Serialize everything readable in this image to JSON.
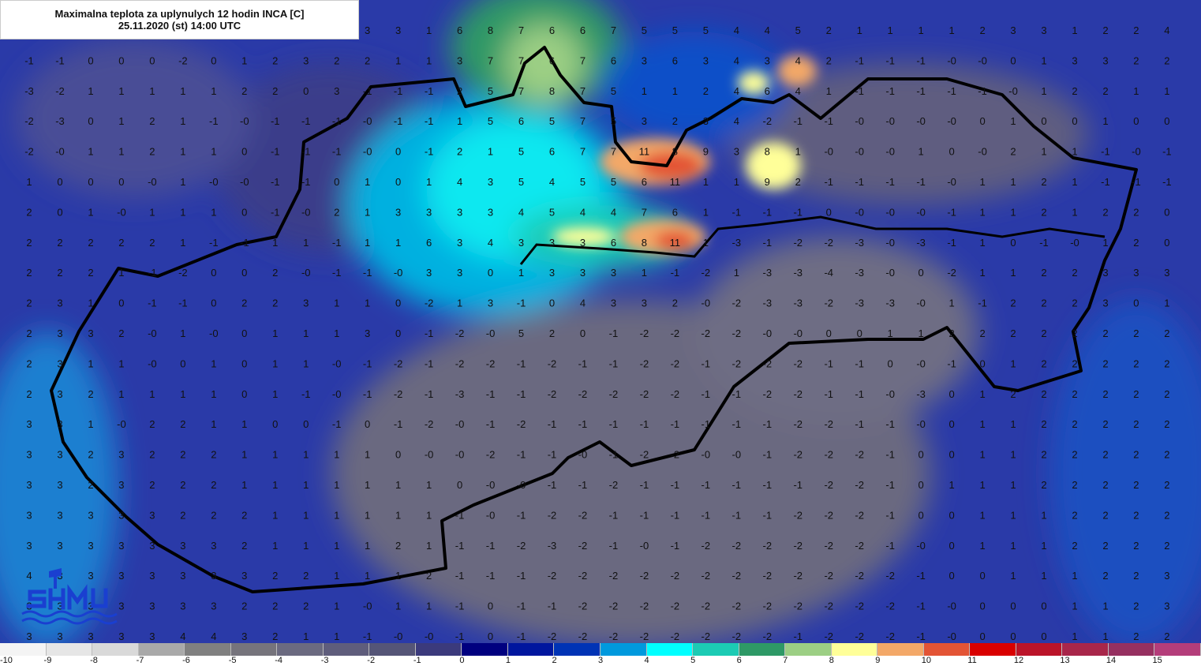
{
  "header": {
    "title": "Maximalna teplota za uplynulych 12 hodin INCA [C]",
    "datetime": "25.11.2020 (st) 14:00 UTC"
  },
  "logo": {
    "text": "SHMU"
  },
  "map": {
    "grid_values": [
      [
        "",
        "",
        "",
        "",
        "",
        "",
        "",
        "",
        "",
        "",
        "",
        "3",
        "3",
        "1",
        "6",
        "8",
        "7",
        "6",
        "6",
        "7",
        "5",
        "5",
        "5",
        "4",
        "4",
        "5",
        "2",
        "1",
        "1",
        "1",
        "1",
        "2",
        "3",
        "3",
        "1",
        "2",
        "2",
        "4"
      ],
      [
        "-1",
        "-1",
        "0",
        "0",
        "0",
        "-2",
        "0",
        "1",
        "2",
        "3",
        "2",
        "2",
        "1",
        "1",
        "3",
        "7",
        "7",
        "6",
        "7",
        "6",
        "3",
        "6",
        "3",
        "4",
        "3",
        "4",
        "2",
        "-1",
        "-1",
        "-1",
        "-0",
        "-0",
        "0",
        "1",
        "3",
        "3",
        "2",
        "2"
      ],
      [
        "-3",
        "-2",
        "1",
        "1",
        "1",
        "1",
        "1",
        "2",
        "2",
        "0",
        "3",
        "-1",
        "-1",
        "-1",
        "2",
        "5",
        "7",
        "8",
        "7",
        "5",
        "1",
        "1",
        "2",
        "4",
        "6",
        "4",
        "1",
        "-1",
        "-1",
        "-1",
        "-1",
        "-1",
        "-0",
        "1",
        "2",
        "2",
        "1",
        "1"
      ],
      [
        "-2",
        "-3",
        "0",
        "1",
        "2",
        "1",
        "-1",
        "-0",
        "-1",
        "-1",
        "-1",
        "-0",
        "-1",
        "-1",
        "1",
        "5",
        "6",
        "5",
        "7",
        "5",
        "3",
        "2",
        "3",
        "4",
        "-2",
        "-1",
        "-1",
        "-0",
        "-0",
        "-0",
        "-0",
        "0",
        "1",
        "0",
        "0",
        "1",
        "0",
        "0"
      ],
      [
        "-2",
        "-0",
        "1",
        "1",
        "2",
        "1",
        "1",
        "0",
        "-1",
        "-1",
        "-1",
        "-0",
        "0",
        "-1",
        "2",
        "1",
        "5",
        "6",
        "7",
        "7",
        "11",
        "8",
        "9",
        "3",
        "8",
        "1",
        "-0",
        "-0",
        "-0",
        "1",
        "0",
        "-0",
        "2",
        "1",
        "1",
        "-1",
        "-0",
        "-1"
      ],
      [
        "1",
        "0",
        "0",
        "0",
        "-0",
        "1",
        "-0",
        "-0",
        "-1",
        "-1",
        "0",
        "1",
        "0",
        "1",
        "4",
        "3",
        "5",
        "4",
        "5",
        "5",
        "6",
        "11",
        "1",
        "1",
        "9",
        "2",
        "-1",
        "-1",
        "-1",
        "-1",
        "-0",
        "1",
        "1",
        "2",
        "1",
        "-1",
        "-1",
        "-1"
      ],
      [
        "2",
        "0",
        "1",
        "-0",
        "1",
        "1",
        "1",
        "0",
        "-1",
        "-0",
        "2",
        "1",
        "3",
        "3",
        "3",
        "3",
        "4",
        "5",
        "4",
        "4",
        "7",
        "6",
        "1",
        "-1",
        "-1",
        "-1",
        "0",
        "-0",
        "-0",
        "-0",
        "-1",
        "1",
        "1",
        "2",
        "1",
        "2",
        "2",
        "0"
      ],
      [
        "2",
        "2",
        "2",
        "2",
        "2",
        "1",
        "-1",
        "-1",
        "1",
        "1",
        "-1",
        "1",
        "1",
        "6",
        "3",
        "4",
        "3",
        "3",
        "3",
        "6",
        "8",
        "11",
        "1",
        "-3",
        "-1",
        "-2",
        "-2",
        "-3",
        "-0",
        "-3",
        "-1",
        "1",
        "0",
        "-1",
        "-0",
        "1",
        "2",
        "0"
      ],
      [
        "2",
        "2",
        "2",
        "1",
        "-1",
        "-2",
        "0",
        "0",
        "2",
        "-0",
        "-1",
        "-1",
        "-0",
        "3",
        "3",
        "0",
        "1",
        "3",
        "3",
        "3",
        "1",
        "-1",
        "-2",
        "1",
        "-3",
        "-3",
        "-4",
        "-3",
        "-0",
        "0",
        "-2",
        "1",
        "1",
        "2",
        "2",
        "3",
        "3",
        "3"
      ],
      [
        "2",
        "3",
        "1",
        "0",
        "-1",
        "-1",
        "0",
        "2",
        "2",
        "3",
        "1",
        "1",
        "0",
        "-2",
        "1",
        "3",
        "-1",
        "0",
        "4",
        "3",
        "3",
        "2",
        "-0",
        "-2",
        "-3",
        "-3",
        "-2",
        "-3",
        "-3",
        "-0",
        "1",
        "-1",
        "2",
        "2",
        "2",
        "3",
        "0",
        "1"
      ],
      [
        "2",
        "3",
        "3",
        "2",
        "-0",
        "1",
        "-0",
        "0",
        "1",
        "1",
        "1",
        "3",
        "0",
        "-1",
        "-2",
        "-0",
        "5",
        "2",
        "0",
        "-1",
        "-2",
        "-2",
        "-2",
        "-2",
        "-0",
        "-0",
        "0",
        "0",
        "1",
        "1",
        "2",
        "2",
        "2",
        "2",
        "2",
        "2",
        "2",
        "2"
      ],
      [
        "2",
        "3",
        "1",
        "1",
        "-0",
        "0",
        "1",
        "0",
        "1",
        "1",
        "-0",
        "-1",
        "-2",
        "-1",
        "-2",
        "-2",
        "-1",
        "-2",
        "-1",
        "-1",
        "-2",
        "-2",
        "-1",
        "-2",
        "-2",
        "-2",
        "-1",
        "-1",
        "0",
        "-0",
        "-1",
        "0",
        "1",
        "2",
        "2",
        "2",
        "2",
        "2"
      ],
      [
        "2",
        "3",
        "2",
        "1",
        "1",
        "1",
        "1",
        "0",
        "1",
        "-1",
        "-0",
        "-1",
        "-2",
        "-1",
        "-3",
        "-1",
        "-1",
        "-2",
        "-2",
        "-2",
        "-2",
        "-2",
        "-1",
        "-1",
        "-2",
        "-2",
        "-1",
        "-1",
        "-0",
        "-3",
        "0",
        "1",
        "2",
        "2",
        "2",
        "2",
        "2",
        "2"
      ],
      [
        "3",
        "3",
        "1",
        "-0",
        "2",
        "2",
        "1",
        "1",
        "0",
        "0",
        "-1",
        "0",
        "-1",
        "-2",
        "-0",
        "-1",
        "-2",
        "-1",
        "-1",
        "-1",
        "-1",
        "-1",
        "-1",
        "-1",
        "-1",
        "-2",
        "-2",
        "-1",
        "-1",
        "-0",
        "0",
        "1",
        "1",
        "2",
        "2",
        "2",
        "2",
        "2"
      ],
      [
        "3",
        "3",
        "2",
        "3",
        "2",
        "2",
        "2",
        "1",
        "1",
        "1",
        "1",
        "1",
        "0",
        "-0",
        "-0",
        "-2",
        "-1",
        "-1",
        "-0",
        "-1",
        "-2",
        "-2",
        "-0",
        "-0",
        "-1",
        "-2",
        "-2",
        "-2",
        "-1",
        "0",
        "0",
        "1",
        "1",
        "2",
        "2",
        "2",
        "2",
        "2"
      ],
      [
        "3",
        "3",
        "2",
        "3",
        "2",
        "2",
        "2",
        "1",
        "1",
        "1",
        "1",
        "1",
        "1",
        "1",
        "0",
        "-0",
        "-0",
        "-1",
        "-1",
        "-2",
        "-1",
        "-1",
        "-1",
        "-1",
        "-1",
        "-1",
        "-2",
        "-2",
        "-1",
        "0",
        "1",
        "1",
        "1",
        "2",
        "2",
        "2",
        "2",
        "2"
      ],
      [
        "3",
        "3",
        "3",
        "3",
        "3",
        "2",
        "2",
        "2",
        "1",
        "1",
        "1",
        "1",
        "1",
        "1",
        "-1",
        "-0",
        "-1",
        "-2",
        "-2",
        "-1",
        "-1",
        "-1",
        "-1",
        "-1",
        "-1",
        "-2",
        "-2",
        "-2",
        "-1",
        "0",
        "0",
        "1",
        "1",
        "1",
        "2",
        "2",
        "2",
        "2"
      ],
      [
        "3",
        "3",
        "3",
        "3",
        "3",
        "3",
        "3",
        "2",
        "1",
        "1",
        "1",
        "1",
        "2",
        "1",
        "-1",
        "-1",
        "-2",
        "-3",
        "-2",
        "-1",
        "-0",
        "-1",
        "-2",
        "-2",
        "-2",
        "-2",
        "-2",
        "-2",
        "-1",
        "-0",
        "0",
        "1",
        "1",
        "1",
        "2",
        "2",
        "2",
        "2"
      ],
      [
        "4",
        "3",
        "3",
        "3",
        "3",
        "3",
        "3",
        "3",
        "2",
        "2",
        "1",
        "1",
        "1",
        "2",
        "-1",
        "-1",
        "-1",
        "-2",
        "-2",
        "-2",
        "-2",
        "-2",
        "-2",
        "-2",
        "-2",
        "-2",
        "-2",
        "-2",
        "-2",
        "-1",
        "0",
        "0",
        "1",
        "1",
        "1",
        "2",
        "2",
        "3"
      ],
      [
        "3",
        "3",
        "3",
        "3",
        "3",
        "3",
        "3",
        "2",
        "2",
        "2",
        "1",
        "-0",
        "1",
        "1",
        "-1",
        "0",
        "-1",
        "-1",
        "-2",
        "-2",
        "-2",
        "-2",
        "-2",
        "-2",
        "-2",
        "-2",
        "-2",
        "-2",
        "-2",
        "-1",
        "-0",
        "0",
        "0",
        "0",
        "1",
        "1",
        "2",
        "3"
      ],
      [
        "3",
        "3",
        "3",
        "3",
        "3",
        "4",
        "4",
        "3",
        "2",
        "1",
        "1",
        "-1",
        "-0",
        "-0",
        "-1",
        "0",
        "-1",
        "-2",
        "-2",
        "-2",
        "-2",
        "-2",
        "-2",
        "-2",
        "-2",
        "-1",
        "-2",
        "-2",
        "-2",
        "-1",
        "-0",
        "0",
        "0",
        "0",
        "1",
        "1",
        "2",
        "2"
      ]
    ]
  },
  "legend": {
    "items": [
      {
        "label": "-10",
        "color": "#f4f4f4"
      },
      {
        "label": "-9",
        "color": "#e6e6e6"
      },
      {
        "label": "-8",
        "color": "#d9d9d9"
      },
      {
        "label": "-7",
        "color": "#a9a9a9"
      },
      {
        "label": "-6",
        "color": "#808080"
      },
      {
        "label": "-5",
        "color": "#76747c"
      },
      {
        "label": "-4",
        "color": "#6b6a80"
      },
      {
        "label": "-3",
        "color": "#5f5d7c"
      },
      {
        "label": "-2",
        "color": "#555577"
      },
      {
        "label": "-1",
        "color": "#3b3a7c"
      },
      {
        "label": "0",
        "color": "#00007f"
      },
      {
        "label": "1",
        "color": "#00169e"
      },
      {
        "label": "2",
        "color": "#0033b5"
      },
      {
        "label": "3",
        "color": "#0099dd"
      },
      {
        "label": "4",
        "color": "#00ffff"
      },
      {
        "label": "5",
        "color": "#1ccbb4"
      },
      {
        "label": "6",
        "color": "#2e9966"
      },
      {
        "label": "7",
        "color": "#9ccf84"
      },
      {
        "label": "8",
        "color": "#ffff99"
      },
      {
        "label": "9",
        "color": "#f3a868"
      },
      {
        "label": "10",
        "color": "#e35435"
      },
      {
        "label": "11",
        "color": "#d90000"
      },
      {
        "label": "12",
        "color": "#bb1429"
      },
      {
        "label": "13",
        "color": "#a8264a"
      },
      {
        "label": "14",
        "color": "#963060"
      },
      {
        "label": "15",
        "color": "#b43d7a"
      }
    ]
  }
}
